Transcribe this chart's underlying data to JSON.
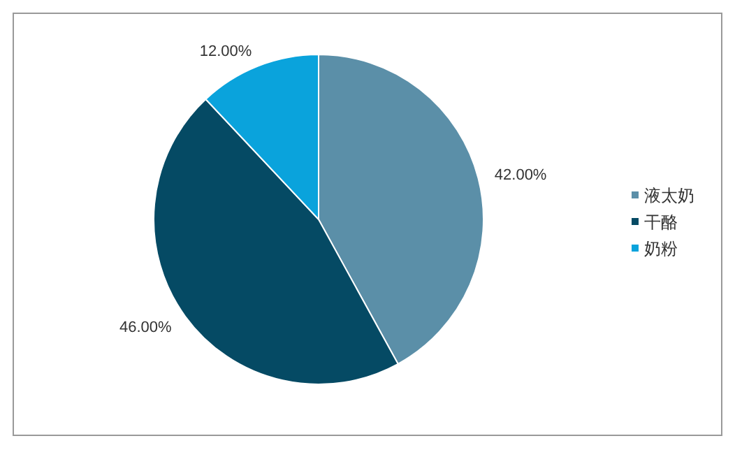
{
  "chart_data": {
    "type": "pie",
    "categories": [
      "液太奶",
      "干酪",
      "奶粉"
    ],
    "values": [
      42,
      46,
      12
    ],
    "value_labels": [
      "42.00%",
      "46.00%",
      "12.00%"
    ],
    "colors": [
      "#5b8fa8",
      "#054a64",
      "#0aa3dc"
    ],
    "legend": "right"
  }
}
